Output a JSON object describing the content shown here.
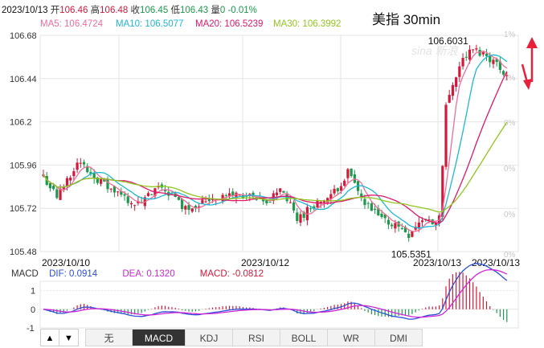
{
  "colors": {
    "up": "#d3183a",
    "down": "#1a9a4a",
    "ma5": "#f06e99",
    "ma10": "#1fb8d4",
    "ma20": "#e0186a",
    "ma30": "#90c71e",
    "dif": "#2a4fd8",
    "dea": "#d024d8",
    "grid": "#e6e6e6",
    "arrow": "#e8203a"
  },
  "header": {
    "date": "2023/10/13",
    "open_label": "开",
    "open": "106.46",
    "high_label": "高",
    "high": "106.48",
    "close_label": "收",
    "close": "106.45",
    "low_label": "低",
    "low": "106.43",
    "chg_label": "量",
    "change": "0",
    "pct": "-0.01%"
  },
  "ma": {
    "ma5": "MA5: 106.4724",
    "ma10": "MA10: 106.5077",
    "ma20": "MA20: 106.5239",
    "ma30": "MA30: 106.3992"
  },
  "title": "美指 30min",
  "watermark": "sina 新浪",
  "macd_header": {
    "name": "MACD",
    "dif": "DIF: 0.0914",
    "dea": "DEA: 0.1320",
    "macd": "MACD: -0.0812"
  },
  "tabs": {
    "up_arrow": "▲",
    "down_arrow": "▼",
    "items": [
      "无",
      "MACD",
      "KDJ",
      "RSI",
      "BOLL",
      "WR",
      "DMI"
    ],
    "active": "MACD"
  },
  "chart_data": {
    "type": "candlestick",
    "yticks": [
      "106.68",
      "106.44",
      "106.2",
      "105.96",
      "105.72",
      "105.48"
    ],
    "ylim": [
      105.48,
      106.68
    ],
    "right_ticks": [
      "1%",
      "1%",
      "0%",
      "0%",
      "0%",
      "0%"
    ],
    "xlabels": [
      "2023/10/10",
      "2023/10/12",
      "2023/10/13",
      "2023/10/13"
    ],
    "high_annotation": "106.6031",
    "low_annotation": "105.5351",
    "macd_yticks": [
      "1",
      "0",
      "-1"
    ],
    "macd_ylim": [
      -1,
      1.5
    ]
  }
}
